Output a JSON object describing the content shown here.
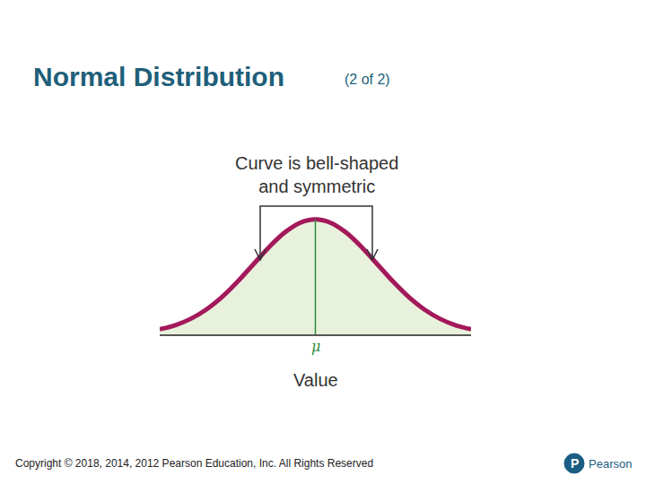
{
  "chart_data": {
    "type": "area",
    "title": "Normal Distribution",
    "subtitle": "(2 of 2)",
    "x": [
      -2.5,
      -2.25,
      -2,
      -1.75,
      -1.5,
      -1.25,
      -1,
      -0.75,
      -0.5,
      -0.25,
      0,
      0.25,
      0.5,
      0.75,
      1,
      1.25,
      1.5,
      1.75,
      2,
      2.25,
      2.5
    ],
    "values": [
      0.0175,
      0.0317,
      0.054,
      0.0863,
      0.1295,
      0.1826,
      0.242,
      0.3011,
      0.3521,
      0.3867,
      0.3989,
      0.3867,
      0.3521,
      0.3011,
      0.242,
      0.1826,
      0.1295,
      0.0863,
      0.054,
      0.0317,
      0.0175
    ],
    "xlim": [
      -2.5,
      2.5
    ],
    "ylim": [
      0,
      0.42
    ],
    "tick_labels": false,
    "grid": false,
    "color": "#a3195b",
    "fill_color": "#e8f1dc",
    "mean": {
      "text": "μ",
      "x": 0,
      "color": "#2e8b3e"
    },
    "x_label": "Value",
    "note": [
      "Curve is bell-shaped",
      "and symmetric"
    ]
  },
  "footer": {
    "copyright": "Copyright © 2018, 2014, 2012 Pearson Education, Inc. All Rights Reserved",
    "logo_mark": "P",
    "logo_text": "Pearson"
  }
}
